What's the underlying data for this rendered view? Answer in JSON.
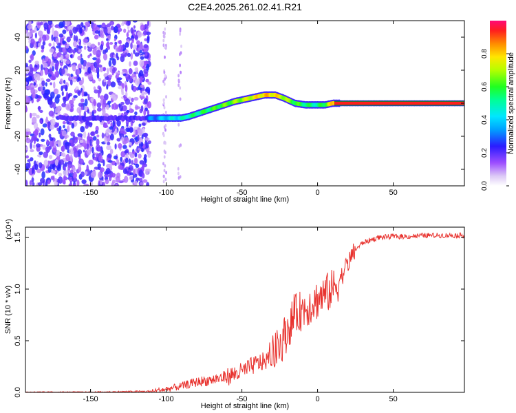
{
  "title": "C2E4.2025.261.02.41.R21",
  "chart_data": [
    {
      "type": "heatmap",
      "xlabel": "Height of straight line (km)",
      "ylabel": "Frequency (Hz)",
      "xlim": [
        -193,
        97
      ],
      "ylim": [
        -50,
        50
      ],
      "xticks": [
        -150,
        -100,
        -50,
        0,
        50
      ],
      "yticks": [
        -40,
        -20,
        0,
        20,
        40
      ],
      "colorbar": {
        "label": "Normalized spectral amplitude",
        "ticks": [
          0.0,
          0.2,
          0.4,
          0.6,
          0.8
        ],
        "range": [
          0,
          1
        ]
      },
      "signal_track": {
        "heights_km": [
          -125,
          -110,
          -100,
          -90,
          -85,
          -75,
          -65,
          -55,
          -45,
          -35,
          -28,
          -22,
          -15,
          -8,
          0,
          5,
          10,
          20,
          97
        ],
        "frequency_hz": [
          -9,
          -9,
          -9,
          -9,
          -8,
          -5,
          -2,
          1,
          3,
          5,
          5,
          3,
          0,
          -1,
          -1,
          -1,
          0,
          0,
          0
        ],
        "amplitude": [
          0.18,
          0.3,
          0.4,
          0.45,
          0.5,
          0.55,
          0.6,
          0.65,
          0.72,
          0.8,
          0.78,
          0.7,
          0.6,
          0.55,
          0.5,
          0.6,
          0.8,
          0.95,
          0.95
        ]
      }
    },
    {
      "type": "line",
      "xlabel": "Height of straight line (km)",
      "ylabel": "SNR (10 * v/v)",
      "yscale_label": "(x10⁴)",
      "xlim": [
        -193,
        97
      ],
      "ylim": [
        0,
        1.6
      ],
      "xticks": [
        -150,
        -100,
        -50,
        0,
        50
      ],
      "yticks": [
        "0.0",
        "0.5",
        "1.0",
        "1.5"
      ],
      "series": [
        {
          "name": "SNR",
          "color": "#e8322e",
          "x": [
            -193,
            -150,
            -110,
            -100,
            -90,
            -80,
            -70,
            -60,
            -50,
            -45,
            -40,
            -35,
            -30,
            -25,
            -20,
            -15,
            -10,
            -5,
            0,
            5,
            10,
            15,
            20,
            25,
            30,
            40,
            50,
            60,
            70,
            80,
            90,
            97
          ],
          "y": [
            0.0,
            0.0,
            0.01,
            0.03,
            0.06,
            0.1,
            0.12,
            0.15,
            0.2,
            0.24,
            0.28,
            0.3,
            0.34,
            0.45,
            0.6,
            0.75,
            0.8,
            0.85,
            0.9,
            0.95,
            1.0,
            1.1,
            1.25,
            1.38,
            1.45,
            1.5,
            1.51,
            1.51,
            1.52,
            1.52,
            1.52,
            1.52
          ]
        }
      ]
    }
  ]
}
